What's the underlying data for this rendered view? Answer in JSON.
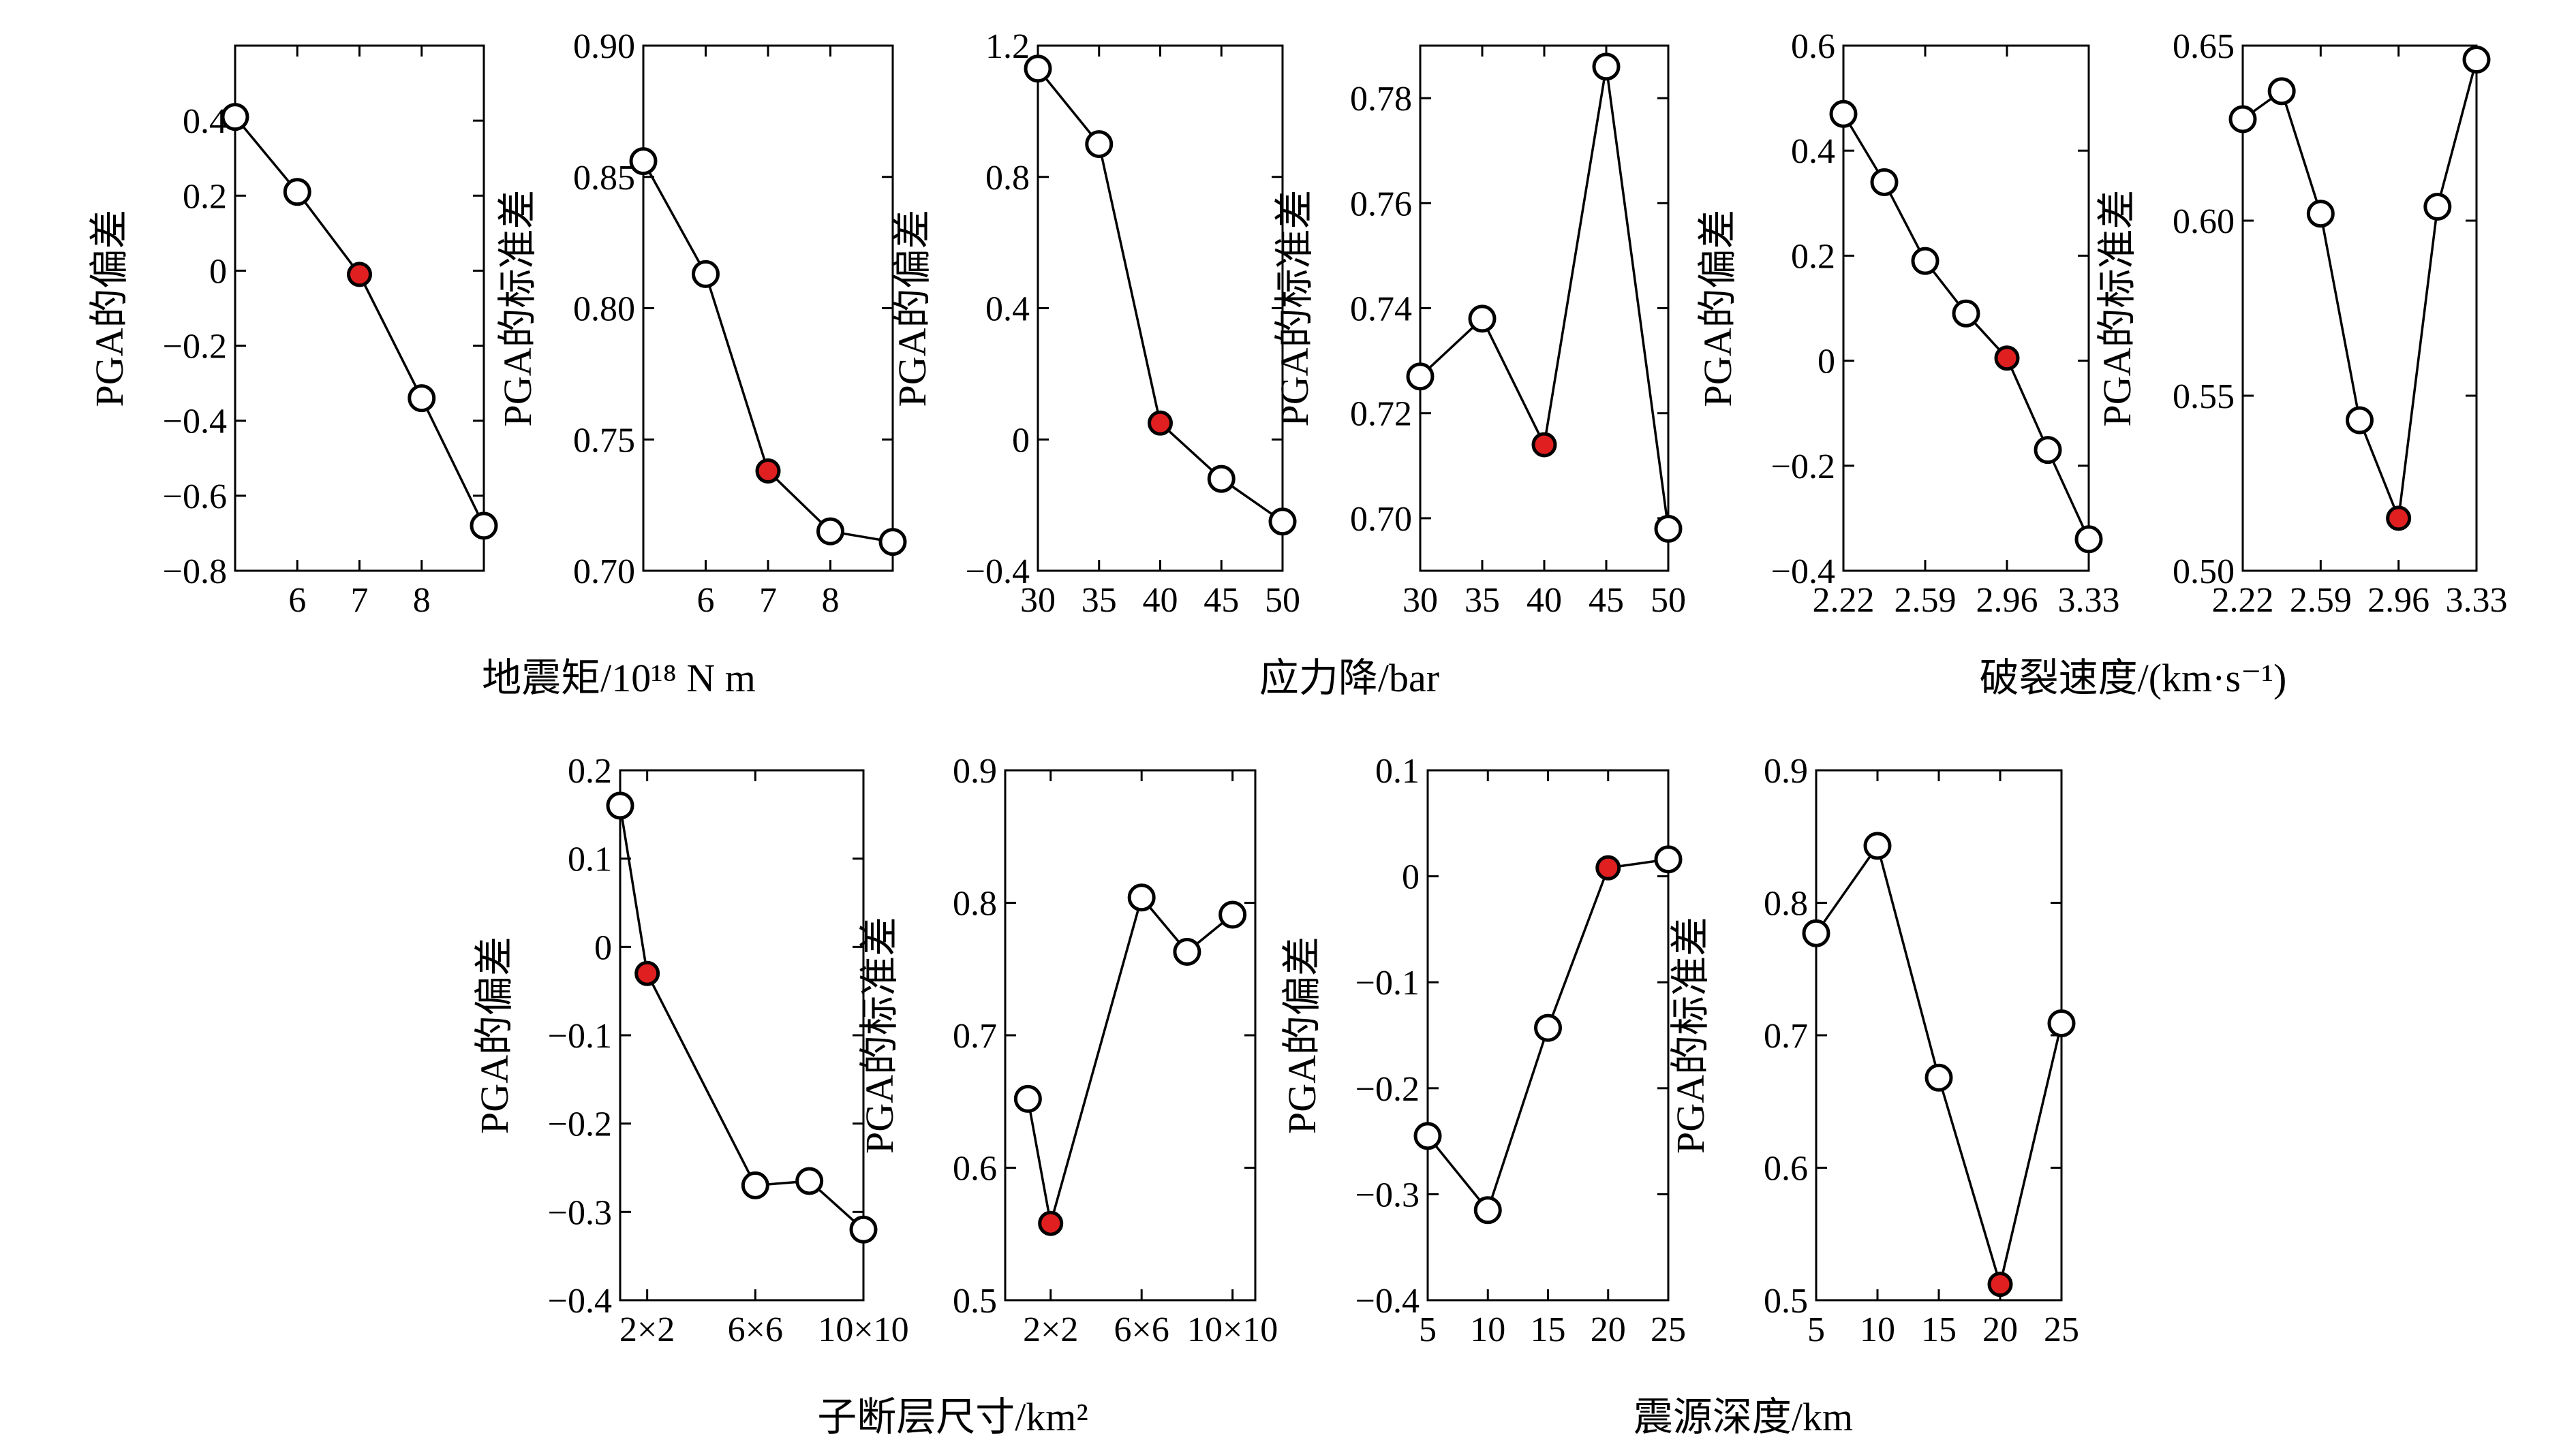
{
  "figure": {
    "colors": {
      "marker_fill": "#ffffff",
      "highlight_fill": "#e02020",
      "line": "#000000"
    }
  },
  "chart_data": [
    {
      "type": "line",
      "group": "moment",
      "xlabel": "地震矩/10¹⁸ N m",
      "ylabel": "PGA的偏差",
      "x": [
        5,
        6,
        7,
        8,
        9
      ],
      "values": [
        0.41,
        0.21,
        -0.01,
        -0.34,
        -0.68
      ],
      "highlight_index": 2,
      "xlim": [
        5,
        9
      ],
      "ylim": [
        -0.8,
        0.6
      ],
      "xticks": [
        6,
        7,
        8
      ],
      "xtick_labels": [
        "6",
        "7",
        "8"
      ],
      "yticks": [
        -0.8,
        -0.6,
        -0.4,
        -0.2,
        0,
        0.2,
        0.4
      ],
      "ytick_labels": [
        "−0.8",
        "−0.6",
        "−0.4",
        "−0.2",
        "0",
        "0.2",
        "0.4"
      ]
    },
    {
      "type": "line",
      "group": "moment",
      "ylabel": "PGA的标准差",
      "x": [
        5,
        6,
        7,
        8,
        9
      ],
      "values": [
        0.856,
        0.813,
        0.738,
        0.715,
        0.711
      ],
      "highlight_index": 2,
      "xlim": [
        5,
        9
      ],
      "ylim": [
        0.7,
        0.9
      ],
      "xticks": [
        6,
        7,
        8
      ],
      "xtick_labels": [
        "6",
        "7",
        "8"
      ],
      "yticks": [
        0.7,
        0.75,
        0.8,
        0.85,
        0.9
      ],
      "ytick_labels": [
        "0.70",
        "0.75",
        "0.80",
        "0.85",
        "0.90"
      ]
    },
    {
      "type": "line",
      "group": "stress",
      "xlabel": "应力降/bar",
      "ylabel": "PGA的偏差",
      "x": [
        30,
        35,
        40,
        45,
        50
      ],
      "values": [
        1.13,
        0.9,
        0.05,
        -0.12,
        -0.25
      ],
      "highlight_index": 2,
      "xlim": [
        30,
        50
      ],
      "ylim": [
        -0.4,
        1.2
      ],
      "xticks": [
        30,
        35,
        40,
        45,
        50
      ],
      "xtick_labels": [
        "30",
        "35",
        "40",
        "45",
        "50"
      ],
      "yticks": [
        -0.4,
        0,
        0.4,
        0.8,
        1.2
      ],
      "ytick_labels": [
        "−0.4",
        "0",
        "0.4",
        "0.8",
        "1.2"
      ]
    },
    {
      "type": "line",
      "group": "stress",
      "ylabel": "PGA的标准差",
      "x": [
        30,
        35,
        40,
        45,
        50
      ],
      "values": [
        0.727,
        0.738,
        0.714,
        0.786,
        0.698
      ],
      "highlight_index": 2,
      "xlim": [
        30,
        50
      ],
      "ylim": [
        0.69,
        0.79
      ],
      "xticks": [
        30,
        35,
        40,
        45,
        50
      ],
      "xtick_labels": [
        "30",
        "35",
        "40",
        "45",
        "50"
      ],
      "yticks": [
        0.7,
        0.72,
        0.74,
        0.76,
        0.78
      ],
      "ytick_labels": [
        "0.70",
        "0.72",
        "0.74",
        "0.76",
        "0.78"
      ]
    },
    {
      "type": "line",
      "group": "rupture",
      "xlabel": "破裂速度/(km·s⁻¹)",
      "ylabel": "PGA的偏差",
      "x": [
        2.22,
        2.405,
        2.59,
        2.775,
        2.96,
        3.145,
        3.33
      ],
      "values": [
        0.47,
        0.34,
        0.19,
        0.09,
        0.005,
        -0.17,
        -0.34
      ],
      "highlight_index": 4,
      "xlim": [
        2.22,
        3.33
      ],
      "ylim": [
        -0.4,
        0.6
      ],
      "xticks": [
        2.22,
        2.59,
        2.96,
        3.33
      ],
      "xtick_labels": [
        "2.22",
        "2.59",
        "2.96",
        "3.33"
      ],
      "yticks": [
        -0.4,
        -0.2,
        0,
        0.2,
        0.4,
        0.6
      ],
      "ytick_labels": [
        "−0.4",
        "−0.2",
        "0",
        "0.2",
        "0.4",
        "0.6"
      ]
    },
    {
      "type": "line",
      "group": "rupture",
      "ylabel": "PGA的标准差",
      "x": [
        2.22,
        2.405,
        2.59,
        2.775,
        2.96,
        3.145,
        3.33
      ],
      "values": [
        0.629,
        0.637,
        0.602,
        0.543,
        0.515,
        0.604,
        0.646
      ],
      "highlight_index": 4,
      "xlim": [
        2.22,
        3.33
      ],
      "ylim": [
        0.5,
        0.65
      ],
      "xticks": [
        2.22,
        2.59,
        2.96,
        3.33
      ],
      "xtick_labels": [
        "2.22",
        "2.59",
        "2.96",
        "3.33"
      ],
      "yticks": [
        0.5,
        0.55,
        0.6,
        0.65
      ],
      "ytick_labels": [
        "0.50",
        "0.55",
        "0.60",
        "0.65"
      ]
    },
    {
      "type": "line",
      "group": "subfault",
      "xlabel": "子断层尺寸/km²",
      "ylabel": "PGA的偏差",
      "x": [
        1,
        2,
        6,
        8,
        10
      ],
      "values": [
        0.16,
        -0.03,
        -0.27,
        -0.265,
        -0.32
      ],
      "highlight_index": 1,
      "xlim": [
        1,
        10
      ],
      "ylim": [
        -0.4,
        0.2
      ],
      "xticks": [
        2,
        6,
        10
      ],
      "xtick_labels": [
        "2×2",
        "6×6",
        "10×10"
      ],
      "yticks": [
        -0.4,
        -0.3,
        -0.2,
        -0.1,
        0,
        0.1,
        0.2
      ],
      "ytick_labels": [
        "−0.4",
        "−0.3",
        "−0.2",
        "−0.1",
        "0",
        "0.1",
        "0.2"
      ]
    },
    {
      "type": "line",
      "group": "subfault",
      "ylabel": "PGA的标准差",
      "x": [
        1,
        2,
        6,
        8,
        10
      ],
      "values": [
        0.652,
        0.558,
        0.804,
        0.763,
        0.791
      ],
      "highlight_index": 1,
      "xlim": [
        0,
        11
      ],
      "ylim": [
        0.5,
        0.9
      ],
      "xticks": [
        2,
        6,
        10
      ],
      "xtick_labels": [
        "2×2",
        "6×6",
        "10×10"
      ],
      "yticks": [
        0.5,
        0.6,
        0.7,
        0.8,
        0.9
      ],
      "ytick_labels": [
        "0.5",
        "0.6",
        "0.7",
        "0.8",
        "0.9"
      ]
    },
    {
      "type": "line",
      "group": "depth",
      "xlabel": "震源深度/km",
      "ylabel": "PGA的偏差",
      "x": [
        5,
        10,
        15,
        20,
        25
      ],
      "values": [
        -0.245,
        -0.315,
        -0.143,
        0.008,
        0.016
      ],
      "highlight_index": 3,
      "xlim": [
        5,
        25
      ],
      "ylim": [
        -0.4,
        0.1
      ],
      "xticks": [
        5,
        10,
        15,
        20,
        25
      ],
      "xtick_labels": [
        "5",
        "10",
        "15",
        "20",
        "25"
      ],
      "yticks": [
        -0.4,
        -0.3,
        -0.2,
        -0.1,
        0,
        0.1
      ],
      "ytick_labels": [
        "−0.4",
        "−0.3",
        "−0.2",
        "−0.1",
        "0",
        "0.1"
      ]
    },
    {
      "type": "line",
      "group": "depth",
      "ylabel": "PGA的标准差",
      "x": [
        5,
        10,
        15,
        20,
        25
      ],
      "values": [
        0.777,
        0.843,
        0.668,
        0.512,
        0.709
      ],
      "highlight_index": 3,
      "xlim": [
        5,
        25
      ],
      "ylim": [
        0.5,
        0.9
      ],
      "xticks": [
        5,
        10,
        15,
        20,
        25
      ],
      "xtick_labels": [
        "5",
        "10",
        "15",
        "20",
        "25"
      ],
      "yticks": [
        0.5,
        0.6,
        0.7,
        0.8,
        0.9
      ],
      "ytick_labels": [
        "0.5",
        "0.6",
        "0.7",
        "0.8",
        "0.9"
      ]
    }
  ]
}
